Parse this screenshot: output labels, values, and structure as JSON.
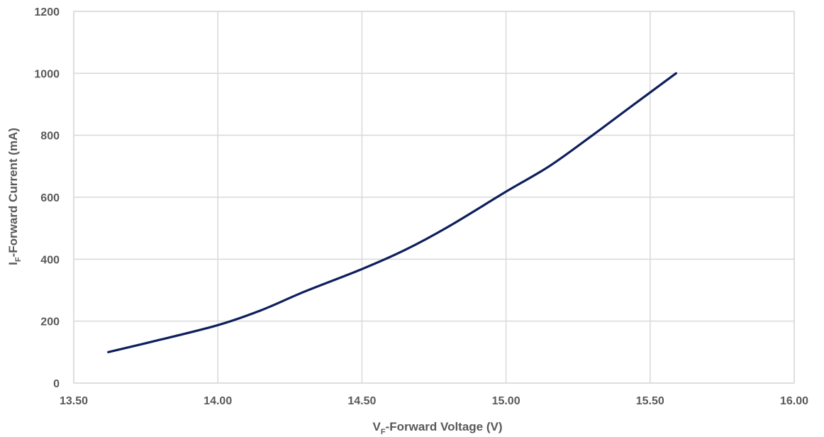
{
  "chart_data": {
    "type": "line",
    "title": "",
    "xlabel": {
      "main": "V",
      "sub": "F",
      "rest": "-Forward Voltage (V)"
    },
    "ylabel": {
      "main": "I",
      "sub": "F",
      "rest": "-Forward Current (mA)"
    },
    "xlim": [
      13.5,
      16.0
    ],
    "ylim": [
      0,
      1200
    ],
    "x_ticks": [
      "13.50",
      "14.00",
      "14.50",
      "15.00",
      "15.50",
      "16.00"
    ],
    "y_ticks": [
      "0",
      "200",
      "400",
      "600",
      "800",
      "1000",
      "1200"
    ],
    "grid": true,
    "legend": "none",
    "series": [
      {
        "color": "#0d1f5c",
        "points": [
          [
            13.62,
            100
          ],
          [
            13.8,
            140
          ],
          [
            14.0,
            187
          ],
          [
            14.15,
            235
          ],
          [
            14.3,
            295
          ],
          [
            14.5,
            368
          ],
          [
            14.65,
            430
          ],
          [
            14.8,
            505
          ],
          [
            15.0,
            618
          ],
          [
            15.15,
            700
          ],
          [
            15.3,
            800
          ],
          [
            15.43,
            890
          ],
          [
            15.59,
            1000
          ]
        ]
      }
    ]
  }
}
